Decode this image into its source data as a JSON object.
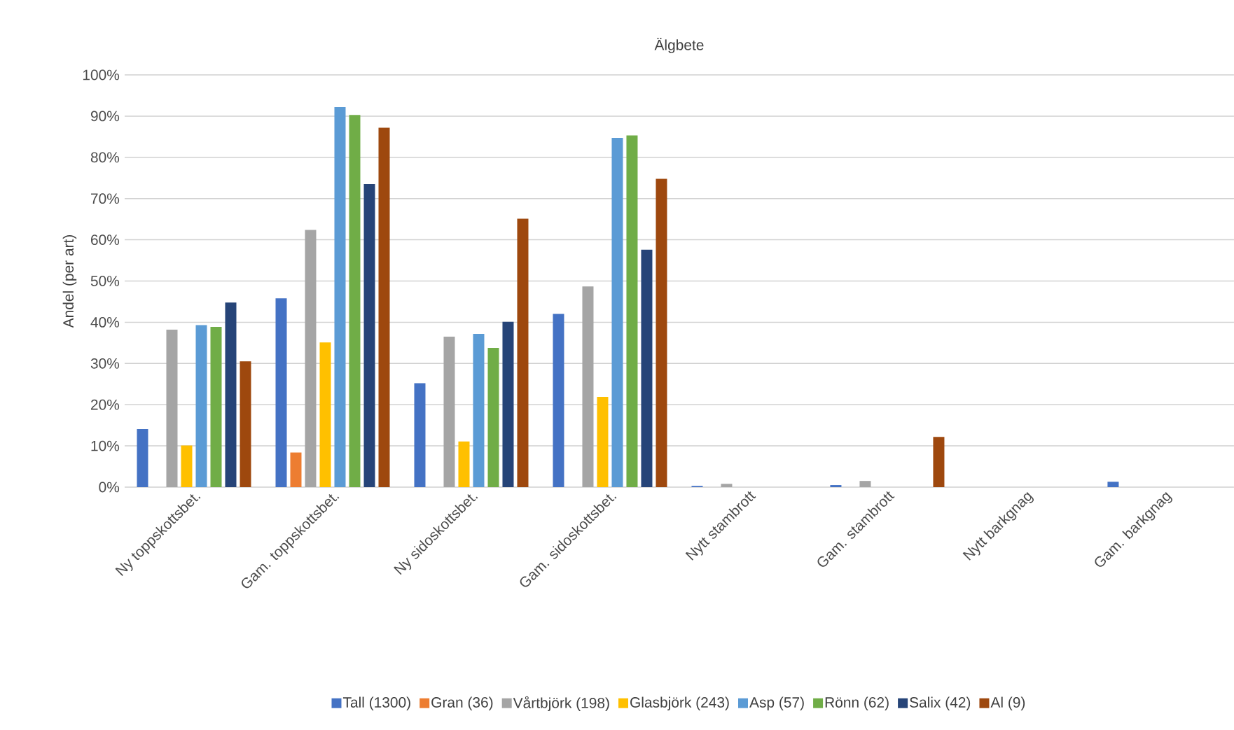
{
  "chart_data": {
    "type": "bar",
    "title": "Älgbete",
    "ylabel": "Andel (per art)",
    "categories": [
      "Ny toppskottsbet.",
      "Gam. toppskottsbet.",
      "Ny sidoskottsbet.",
      "Gam. sidoskottsbet.",
      "Nytt stambrott",
      "Gam. stambrott",
      "Nytt barkgnag",
      "Gam. barkgnag"
    ],
    "series": [
      {
        "name": "Tall (1300)",
        "color": "#4472c4",
        "values": [
          14.1,
          45.8,
          25.2,
          42.0,
          0.3,
          0.5,
          0,
          1.3
        ]
      },
      {
        "name": "Gran (36)",
        "color": "#ed7d31",
        "values": [
          0,
          8.4,
          0,
          0,
          0,
          0,
          0,
          0
        ]
      },
      {
        "name": "Vårtbjörk (198)",
        "color": "#a5a5a5",
        "values": [
          38.2,
          62.4,
          36.5,
          48.7,
          0.8,
          1.5,
          0,
          0
        ]
      },
      {
        "name": "Glasbjörk (243)",
        "color": "#ffc000",
        "values": [
          10.1,
          35.1,
          11.1,
          21.9,
          0,
          0,
          0,
          0
        ]
      },
      {
        "name": "Asp (57)",
        "color": "#5b9bd5",
        "values": [
          39.3,
          92.2,
          37.2,
          84.7,
          0,
          0,
          0,
          0
        ]
      },
      {
        "name": "Rönn (62)",
        "color": "#70ad47",
        "values": [
          38.9,
          90.3,
          33.8,
          85.3,
          0,
          0,
          0,
          0
        ]
      },
      {
        "name": "Salix (42)",
        "color": "#264478",
        "values": [
          44.8,
          73.5,
          40.1,
          57.6,
          0,
          0,
          0,
          0
        ]
      },
      {
        "name": "Al (9)",
        "color": "#9e480e",
        "values": [
          30.5,
          87.2,
          65.1,
          74.8,
          0,
          12.2,
          0,
          0
        ]
      }
    ],
    "ylim": [
      0,
      100
    ],
    "yticks": [
      {
        "value": 0,
        "label": "0%"
      },
      {
        "value": 10,
        "label": "10%"
      },
      {
        "value": 20,
        "label": "20%"
      },
      {
        "value": 30,
        "label": "30%"
      },
      {
        "value": 40,
        "label": "40%"
      },
      {
        "value": 50,
        "label": "50%"
      },
      {
        "value": 60,
        "label": "60%"
      },
      {
        "value": 70,
        "label": "70%"
      },
      {
        "value": 80,
        "label": "80%"
      },
      {
        "value": 90,
        "label": "90%"
      },
      {
        "value": 100,
        "label": "100%"
      }
    ],
    "grid": "y",
    "legend": "bottom"
  }
}
